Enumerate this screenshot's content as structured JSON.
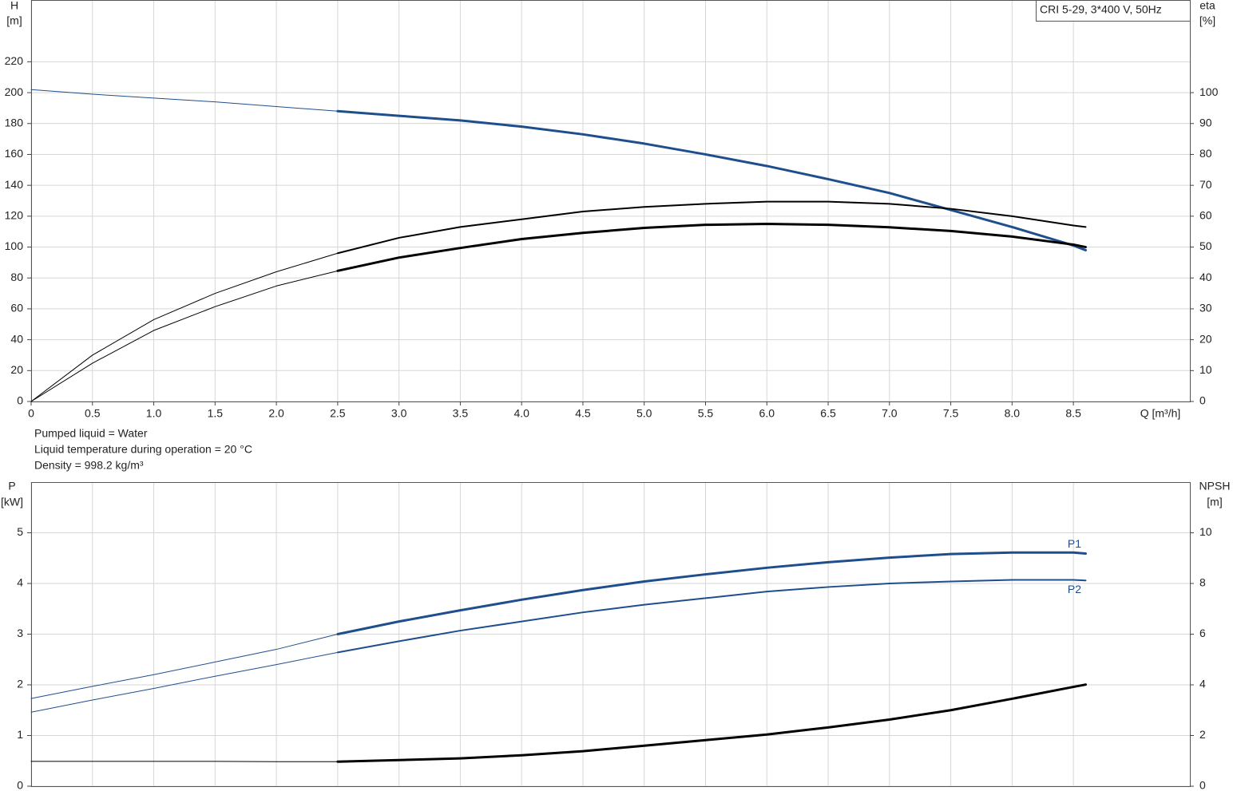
{
  "notes": [
    "Pumped liquid = Water",
    "Liquid temperature during operation = 20 °C",
    "Density = 998.2 kg/m³"
  ],
  "chart_data": [
    {
      "type": "line",
      "title": "CRI 5-29, 3*400 V, 50Hz",
      "ylabel": "H",
      "yunit": "[m]",
      "y2label": "eta",
      "y2unit": "[%]",
      "xlabel": "Q [m³/h]",
      "x": [
        0,
        0.5,
        1,
        1.5,
        2,
        2.5,
        3,
        3.5,
        4,
        4.5,
        5,
        5.5,
        6,
        6.5,
        7,
        7.5,
        8,
        8.5,
        8.6
      ],
      "xlim": [
        0,
        9.45
      ],
      "xticks": [
        0,
        0.5,
        {
          "value": 1,
          "label": "1.0"
        },
        1.5,
        {
          "value": 2,
          "label": "2.0"
        },
        2.5,
        {
          "value": 3,
          "label": "3.0"
        },
        3.5,
        {
          "value": 4,
          "label": "4.0"
        },
        4.5,
        {
          "value": 5,
          "label": "5.0"
        },
        5.5,
        {
          "value": 6,
          "label": "6.0"
        },
        6.5,
        {
          "value": 7,
          "label": "7.0"
        },
        7.5,
        {
          "value": 8,
          "label": "8.0"
        },
        8.5
      ],
      "ylim": [
        0,
        260
      ],
      "yticks": [
        0,
        20,
        40,
        60,
        80,
        100,
        120,
        140,
        160,
        180,
        200,
        220
      ],
      "y2lim": [
        0,
        130
      ],
      "y2ticks": [
        0,
        10,
        20,
        30,
        40,
        50,
        60,
        70,
        80,
        90,
        100
      ],
      "grid": true,
      "series": [
        {
          "color": "#1f4e8c",
          "width": 1,
          "values": [
            202,
            199,
            196.5,
            194,
            191,
            188,
            null,
            null,
            null,
            null,
            null,
            null,
            null,
            null,
            null,
            null,
            null,
            null,
            null
          ]
        },
        {
          "color": "#1f4e8c",
          "width": 3,
          "values": [
            null,
            null,
            null,
            null,
            null,
            188,
            185,
            182,
            178,
            173,
            167,
            160,
            152.5,
            144,
            135,
            124,
            113,
            101,
            98
          ]
        },
        {
          "color": "#000000",
          "width": 1,
          "axis": "y2",
          "values": [
            0,
            15,
            26.5,
            35,
            42,
            48,
            null,
            null,
            null,
            null,
            null,
            null,
            null,
            null,
            null,
            null,
            null,
            null,
            null
          ]
        },
        {
          "color": "#000000",
          "width": 2,
          "axis": "y2",
          "values": [
            null,
            null,
            null,
            null,
            null,
            48,
            53,
            56.5,
            59,
            61.5,
            63,
            64,
            64.7,
            64.7,
            64,
            62.4,
            60,
            57,
            56.5
          ]
        },
        {
          "color": "#000000",
          "width": 1,
          "axis": "y2",
          "values": [
            0,
            12.4,
            23,
            30.7,
            37.4,
            42.3,
            null,
            null,
            null,
            null,
            null,
            null,
            null,
            null,
            null,
            null,
            null,
            null,
            null
          ]
        },
        {
          "color": "#000000",
          "width": 3,
          "axis": "y2",
          "values": [
            null,
            null,
            null,
            null,
            null,
            42.3,
            46.6,
            49.7,
            52.6,
            54.6,
            56.2,
            57.2,
            57.5,
            57.2,
            56.4,
            55.2,
            53.4,
            50.8,
            50
          ]
        }
      ]
    },
    {
      "type": "line",
      "ylabel": "P",
      "yunit": "[kW]",
      "y2label": "NPSH",
      "y2unit": "[m]",
      "x": [
        0,
        0.5,
        1,
        1.5,
        2,
        2.5,
        3,
        3.5,
        4,
        4.5,
        5,
        5.5,
        6,
        6.5,
        7,
        7.5,
        8,
        8.5,
        8.6
      ],
      "xlim": [
        0,
        9.45
      ],
      "ylim": [
        0,
        6
      ],
      "yticks": [
        0,
        1,
        2,
        3,
        4,
        5
      ],
      "y2lim": [
        0,
        12
      ],
      "y2ticks": [
        0,
        2,
        4,
        6,
        8,
        10
      ],
      "grid": true,
      "series": [
        {
          "color": "#1f4e8c",
          "width": 1,
          "values": [
            1.73,
            1.97,
            2.2,
            2.45,
            2.7,
            3.0,
            null,
            null,
            null,
            null,
            null,
            null,
            null,
            null,
            null,
            null,
            null,
            null,
            null
          ]
        },
        {
          "name": "P1",
          "color": "#1f4e8c",
          "width": 3,
          "values": [
            null,
            null,
            null,
            null,
            null,
            3.0,
            3.25,
            3.47,
            3.68,
            3.87,
            4.04,
            4.18,
            4.31,
            4.42,
            4.51,
            4.58,
            4.61,
            4.61,
            4.59
          ]
        },
        {
          "color": "#1f4e8c",
          "width": 1,
          "values": [
            1.46,
            1.7,
            1.93,
            2.17,
            2.4,
            2.64,
            null,
            null,
            null,
            null,
            null,
            null,
            null,
            null,
            null,
            null,
            null,
            null,
            null
          ]
        },
        {
          "name": "P2",
          "color": "#1f4e8c",
          "width": 2,
          "values": [
            null,
            null,
            null,
            null,
            null,
            2.64,
            2.86,
            3.07,
            3.25,
            3.43,
            3.58,
            3.71,
            3.84,
            3.93,
            4.0,
            4.04,
            4.07,
            4.07,
            4.06
          ]
        },
        {
          "color": "#000000",
          "width": 1,
          "axis": "y2",
          "values": [
            0.98,
            0.98,
            0.98,
            0.98,
            0.97,
            0.97,
            null,
            null,
            null,
            null,
            null,
            null,
            null,
            null,
            null,
            null,
            null,
            null,
            null
          ]
        },
        {
          "color": "#000000",
          "width": 3,
          "axis": "y2",
          "values": [
            null,
            null,
            null,
            null,
            null,
            0.97,
            1.03,
            1.1,
            1.22,
            1.38,
            1.6,
            1.82,
            2.04,
            2.32,
            2.63,
            3.0,
            3.45,
            3.92,
            4.01
          ]
        }
      ]
    }
  ]
}
